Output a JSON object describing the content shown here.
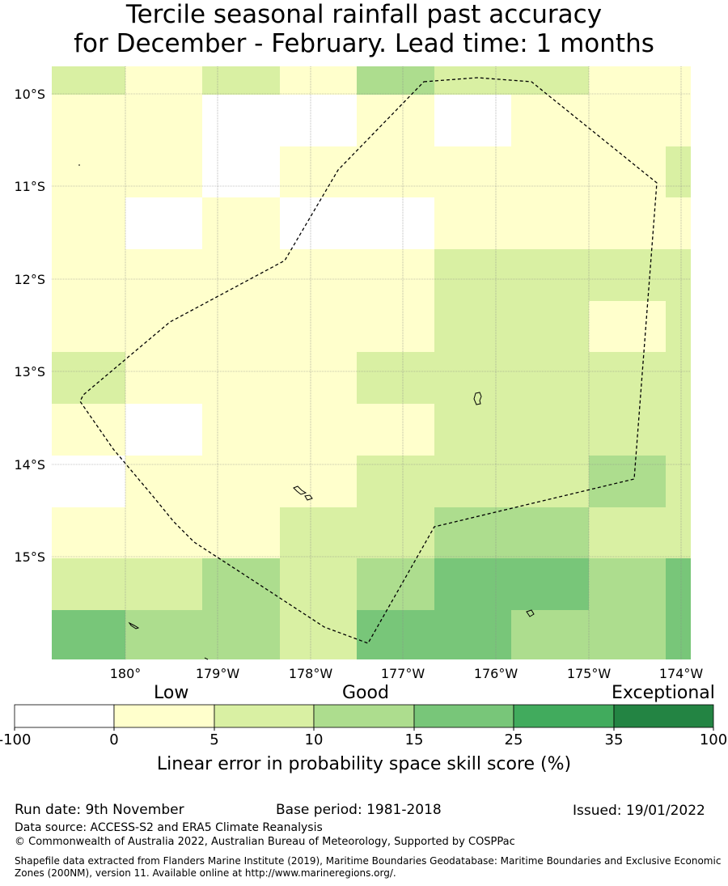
{
  "title": {
    "line1": "Tercile seasonal rainfall past accuracy",
    "line2": "for December - February. Lead time: 1 months"
  },
  "map": {
    "lat_ticks": [
      "10°S",
      "11°S",
      "12°S",
      "13°S",
      "14°S",
      "15°S"
    ],
    "lon_ticks": [
      "180°",
      "179°W",
      "178°W",
      "177°W",
      "176°W",
      "175°W",
      "174°W"
    ],
    "grid": [
      [
        2,
        1,
        2,
        1,
        3,
        2,
        2,
        1,
        1
      ],
      [
        1,
        1,
        0,
        0,
        1,
        0,
        1,
        1,
        1
      ],
      [
        1,
        1,
        0,
        1,
        1,
        1,
        1,
        1,
        2
      ],
      [
        1,
        0,
        1,
        0,
        0,
        1,
        1,
        1,
        1
      ],
      [
        1,
        1,
        1,
        1,
        1,
        2,
        2,
        2,
        2
      ],
      [
        1,
        1,
        1,
        1,
        1,
        2,
        2,
        1,
        2
      ],
      [
        2,
        1,
        1,
        1,
        2,
        2,
        2,
        2,
        2
      ],
      [
        1,
        0,
        1,
        1,
        1,
        2,
        2,
        2,
        2
      ],
      [
        0,
        1,
        1,
        1,
        2,
        2,
        2,
        3,
        2
      ],
      [
        1,
        1,
        1,
        2,
        2,
        3,
        3,
        2,
        2
      ],
      [
        2,
        2,
        3,
        2,
        3,
        4,
        4,
        3,
        4
      ],
      [
        4,
        3,
        3,
        2,
        4,
        4,
        3,
        3,
        4
      ]
    ]
  },
  "colorbar": {
    "labels": [
      "-100",
      "0",
      "5",
      "10",
      "15",
      "25",
      "35",
      "100"
    ],
    "colors": [
      "#ffffff",
      "#ffffcc",
      "#d9f0a3",
      "#addd8e",
      "#78c679",
      "#41ab5d",
      "#238443"
    ],
    "categories": [
      "Low",
      "Good",
      "Exceptional"
    ],
    "axis_label": "Linear error in probability space skill score (%)"
  },
  "footer": {
    "run_date": "Run date: 9th November",
    "base_period": "Base period: 1981-2018",
    "issued": "Issued: 19/01/2022",
    "data_source": "Data source: ACCESS-S2 and ERA5 Climate Reanalysis",
    "copyright": "© Commonwealth of Australia 2022, Australian Bureau of Meteorology, Supported by COSPPac",
    "shapefile": "Shapefile data extracted from Flanders Marine Institute (2019), Maritime Boundaries Geodatabase: Maritime Boundaries and Exclusive Economic Zones (200NM), version 11. Available online at http://www.marineregions.org/."
  }
}
